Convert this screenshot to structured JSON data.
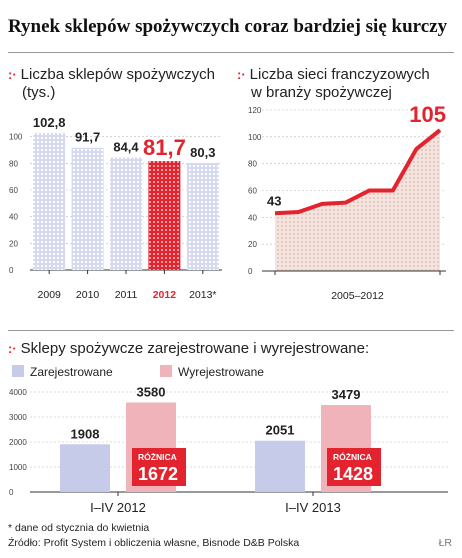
{
  "title": "Rynek sklepów spożywczych coraz bardziej się kurczy",
  "charts": {
    "stores": {
      "title_line1": "Liczba sklepów spożywczych",
      "title_line2": "(tys.)"
    },
    "franchise": {
      "title_line1": "Liczba sieci franczyzowych",
      "title_line2": "w branży spożywczej"
    },
    "registrations": {
      "title": "Sklepy spożywcze zarejestrowane i wyrejestrowane:"
    }
  },
  "chart_data": [
    {
      "type": "bar",
      "title": "Liczba sklepów spożywczych (tys.)",
      "categories": [
        "2009",
        "2010",
        "2011",
        "2012",
        "2013*"
      ],
      "values": [
        102.8,
        91.7,
        84.4,
        81.7,
        80.3
      ],
      "value_labels": [
        "102,8",
        "91,7",
        "84,4",
        "81,7",
        "80,3"
      ],
      "highlight": "2012",
      "yticks": [
        0,
        20,
        40,
        60,
        80,
        100
      ],
      "ylim": [
        0,
        120
      ],
      "colors": {
        "bar": "#c5cbe8",
        "highlight": "#e3232e"
      }
    },
    {
      "type": "line",
      "title": "Liczba sieci franczyzowych w branży spożywczej",
      "x_axis_label": "2005–2012",
      "points": [
        [
          0,
          43
        ],
        [
          1,
          44
        ],
        [
          2,
          50
        ],
        [
          3,
          51
        ],
        [
          4,
          60
        ],
        [
          5,
          60
        ],
        [
          6,
          91
        ],
        [
          7,
          105
        ]
      ],
      "start_label": "43",
      "end_label": "105",
      "yticks": [
        0,
        20,
        40,
        60,
        80,
        100,
        120
      ],
      "ylim": [
        0,
        120
      ],
      "colors": {
        "line": "#e3232e",
        "fill": "#f0d9d2"
      }
    },
    {
      "type": "bar",
      "title": "Sklepy spożywcze zarejestrowane i wyrejestrowane:",
      "categories": [
        "I–IV 2012",
        "I–IV 2013"
      ],
      "series": [
        {
          "name": "Zarejestrowane",
          "values": [
            1908,
            2051
          ]
        },
        {
          "name": "Wyrejestrowane",
          "values": [
            3580,
            3479
          ]
        }
      ],
      "differences": [
        1672,
        1428
      ],
      "difference_label": "RÓŻNICA",
      "yticks": [
        0,
        1000,
        2000,
        3000,
        4000
      ],
      "ylim": [
        0,
        4000
      ],
      "colors": {
        "Zarejestrowane": "#c5cbe8",
        "Wyrejestrowane": "#f0b3b9",
        "accent": "#e3232e"
      }
    }
  ],
  "footnote": "* dane od stycznia do kwietnia",
  "source": "Źródło: Profit System i obliczenia własne, Bisnode D&B Polska",
  "credit": "ŁR"
}
